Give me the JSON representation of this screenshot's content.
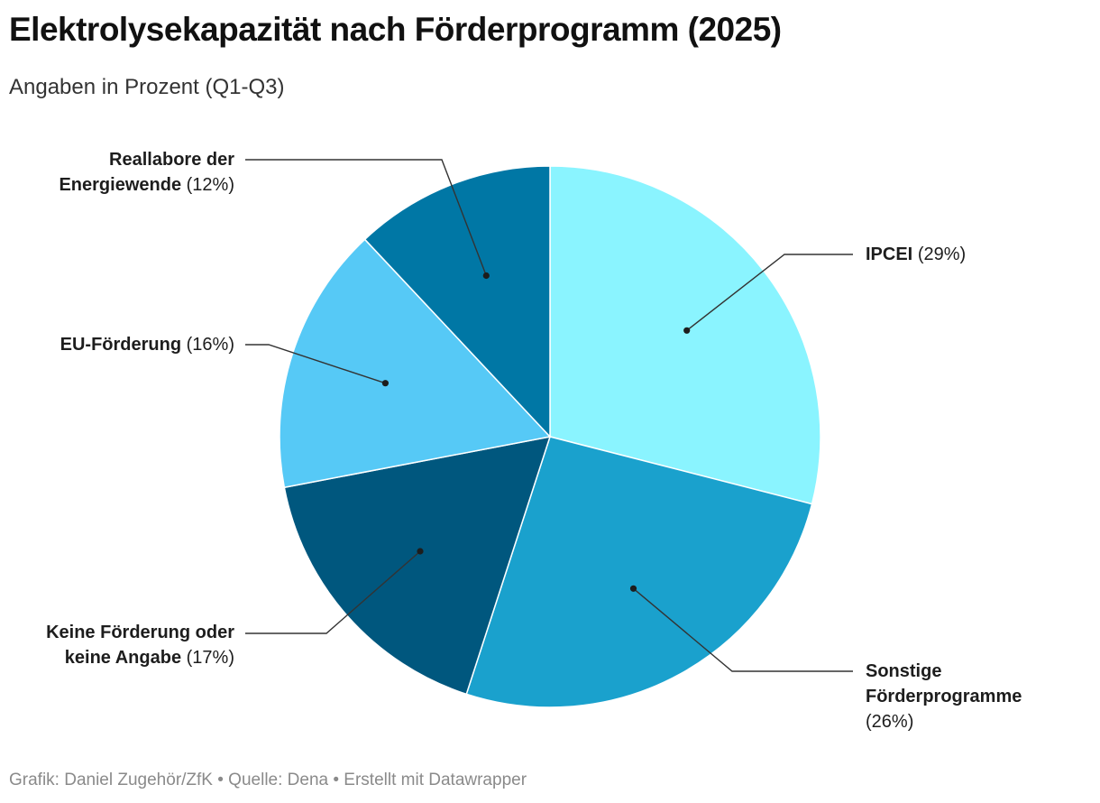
{
  "title": "Elektrolysekapazität nach Förderprogramm (2025)",
  "subtitle": "Angaben in Prozent (Q1-Q3)",
  "footer": "Grafik: Daniel Zugehör/ZfK • Quelle: Dena • Erstellt mit Datawrapper",
  "chart_data": {
    "type": "pie",
    "unit": "%",
    "slices": [
      {
        "label": "IPCEI",
        "pct_text": "(29%)",
        "value": 29,
        "color": "#8af4ff"
      },
      {
        "label": "Sonstige Förderprogramme",
        "pct_text": "(26%)",
        "value": 26,
        "color": "#1aa1cd"
      },
      {
        "label": "Keine Förderung oder keine Angabe",
        "pct_text": "(17%)",
        "value": 17,
        "color": "#00577e"
      },
      {
        "label": "EU-Förderung",
        "pct_text": "(16%)",
        "value": 16,
        "color": "#56c9f6"
      },
      {
        "label": "Reallabore der Energiewende",
        "pct_text": "(12%)",
        "value": 12,
        "color": "#0077a5"
      }
    ]
  }
}
